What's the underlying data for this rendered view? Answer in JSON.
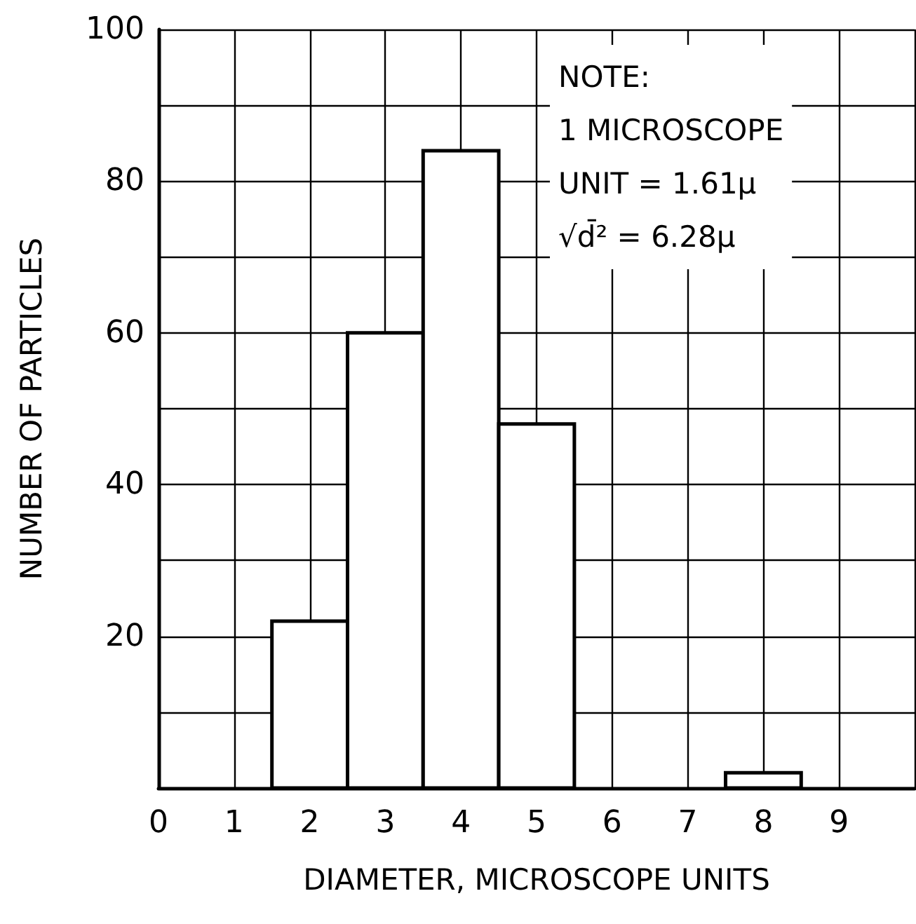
{
  "chart_data": {
    "type": "histogram",
    "xlabel": "DIAMETER, MICROSCOPE UNITS",
    "ylabel": "NUMBER OF PARTICLES",
    "annotations": [
      "NOTE:",
      "1 MICROSCOPE",
      "UNIT = 1.61μ",
      "√d̄² = 6.28μ"
    ],
    "bins": [
      1.5,
      2.5,
      3.5,
      4.5,
      5.5,
      6.5,
      7.5,
      8.5
    ],
    "values": [
      22,
      60,
      84,
      48,
      0,
      0,
      2
    ],
    "color": "#000000",
    "xlim": [
      0,
      10
    ],
    "xticks": [
      0,
      1,
      2,
      3,
      4,
      5,
      6,
      7,
      8,
      9,
      {
        "value": 10,
        "label": null
      }
    ],
    "ylim": [
      0,
      100
    ],
    "yticks": [
      {
        "value": 0,
        "label": null
      },
      {
        "value": 10,
        "label": null
      },
      20,
      {
        "value": 30,
        "label": null
      },
      40,
      {
        "value": 50,
        "label": null
      },
      60,
      {
        "value": 70,
        "label": null
      },
      80,
      {
        "value": 90,
        "label": null
      },
      100
    ],
    "grid": true
  }
}
